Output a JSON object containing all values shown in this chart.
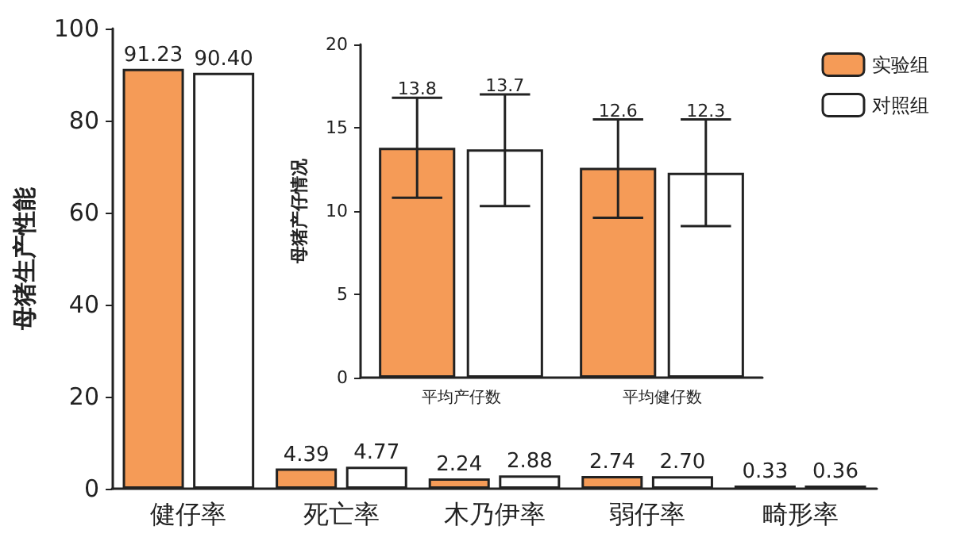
{
  "chart_data": [
    {
      "type": "bar",
      "ylabel": "母猪生产性能",
      "categories": [
        "健仔率",
        "死亡率",
        "木乃伊率",
        "弱仔率",
        "畸形率"
      ],
      "ylim": [
        0,
        100
      ],
      "yticks": [
        0,
        20,
        40,
        60,
        80,
        100
      ],
      "grid": false,
      "legend": false,
      "series": [
        {
          "color": "#f59b57",
          "values": [
            91.23,
            4.39,
            2.24,
            2.74,
            0.33
          ],
          "value_labels": [
            "91.23",
            "4.39",
            "2.24",
            "2.74",
            "0.33"
          ]
        },
        {
          "color": "#ffffff",
          "values": [
            90.4,
            4.77,
            2.88,
            2.7,
            0.36
          ],
          "value_labels": [
            "90.40",
            "4.77",
            "2.88",
            "2.70",
            "0.36"
          ]
        }
      ]
    },
    {
      "type": "bar",
      "ylabel": "母猪产仔情况",
      "categories": [
        "平均产仔数",
        "平均健仔数"
      ],
      "ylim": [
        0,
        20
      ],
      "yticks": [
        0,
        5,
        10,
        15,
        20
      ],
      "grid": false,
      "legend": "top right",
      "data_labels": true,
      "series": [
        {
          "name": "实验组",
          "color": "#f59b57",
          "values": [
            13.8,
            12.6
          ],
          "errors": [
            [
              10.8,
              16.8
            ],
            [
              9.6,
              15.5
            ]
          ]
        },
        {
          "name": "对照组",
          "color": "#ffffff",
          "values": [
            13.7,
            12.3
          ],
          "errors": [
            [
              10.3,
              17.0
            ],
            [
              9.1,
              15.5
            ]
          ]
        }
      ]
    }
  ]
}
